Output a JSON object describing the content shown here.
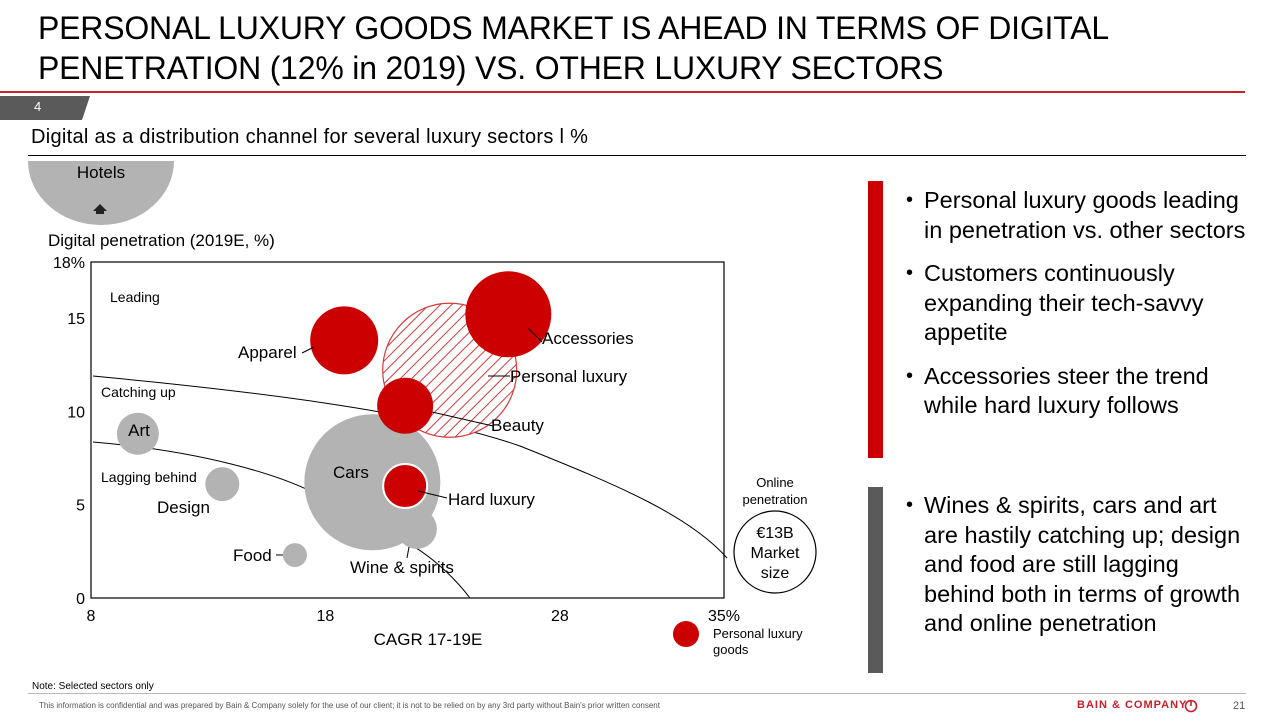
{
  "page": {
    "title": "PERSONAL LUXURY GOODS MARKET IS AHEAD IN TERMS OF DIGITAL PENETRATION (12% in 2019) VS. OTHER LUXURY SECTORS",
    "page_tab": "4",
    "subtitle": "Digital as a distribution channel for several luxury sectors l %",
    "note": "Note: Selected sectors only",
    "footer": "This information is confidential and was prepared by Bain & Company solely for the use of our client; it is not to be relied on by any 3rd party without Bain's prior written consent",
    "brand": "BAIN & COMPANY",
    "page_number": "21",
    "colors": {
      "red": "#cc0000",
      "grey": "#b3b3b3",
      "dark_grey": "#5a5a5a",
      "rule_red": "#c8202a"
    }
  },
  "chart_data": {
    "type": "scatter",
    "subtype": "bubble",
    "ylabel": "Digital penetration (2019E, %)",
    "xlabel": "CAGR 17-19E",
    "x_ticks": [
      "8",
      "18",
      "28",
      "35%"
    ],
    "y_ticks": [
      "0",
      "5",
      "10",
      "15",
      "18%"
    ],
    "xlim": [
      8,
      35
    ],
    "ylim": [
      0,
      18
    ],
    "zones": [
      "Leading",
      "Catching up",
      "Lagging behind"
    ],
    "hotels_label": "Hotels",
    "legend": {
      "size_title": "Online penetration",
      "size_circle": "€13B Market size",
      "color_item": "Personal luxury goods"
    },
    "series": [
      {
        "name": "Accessories",
        "x": 25.8,
        "y": 15.2,
        "color": "#cc0000"
      },
      {
        "name": "Personal luxury",
        "x": 23.3,
        "y": 12.2,
        "color": "hatched"
      },
      {
        "name": "Apparel",
        "x": 18.8,
        "y": 13.8,
        "color": "#cc0000"
      },
      {
        "name": "Beauty",
        "x": 21.4,
        "y": 10.3,
        "color": "#cc0000"
      },
      {
        "name": "Cars",
        "x": 20.0,
        "y": 6.2,
        "color": "#b3b3b3"
      },
      {
        "name": "Hard luxury",
        "x": 21.4,
        "y": 6.0,
        "color": "#cc0000"
      },
      {
        "name": "Wine & spirits",
        "x": 21.9,
        "y": 3.7,
        "color": "#b3b3b3"
      },
      {
        "name": "Art",
        "x": 10.0,
        "y": 8.8,
        "color": "#b3b3b3"
      },
      {
        "name": "Design",
        "x": 13.6,
        "y": 6.1,
        "color": "#b3b3b3"
      },
      {
        "name": "Food",
        "x": 16.7,
        "y": 2.3,
        "color": "#b3b3b3"
      }
    ]
  },
  "bullets": {
    "red_group": [
      "Personal luxury goods leading in penetration vs. other sectors",
      "Customers continuously expanding their tech-savvy appetite",
      "Accessories steer the trend while hard luxury follows"
    ],
    "grey_group": [
      "Wines & spirits, cars and art are hastily catching up; design and food are still lagging behind both in terms of growth and online penetration"
    ]
  }
}
